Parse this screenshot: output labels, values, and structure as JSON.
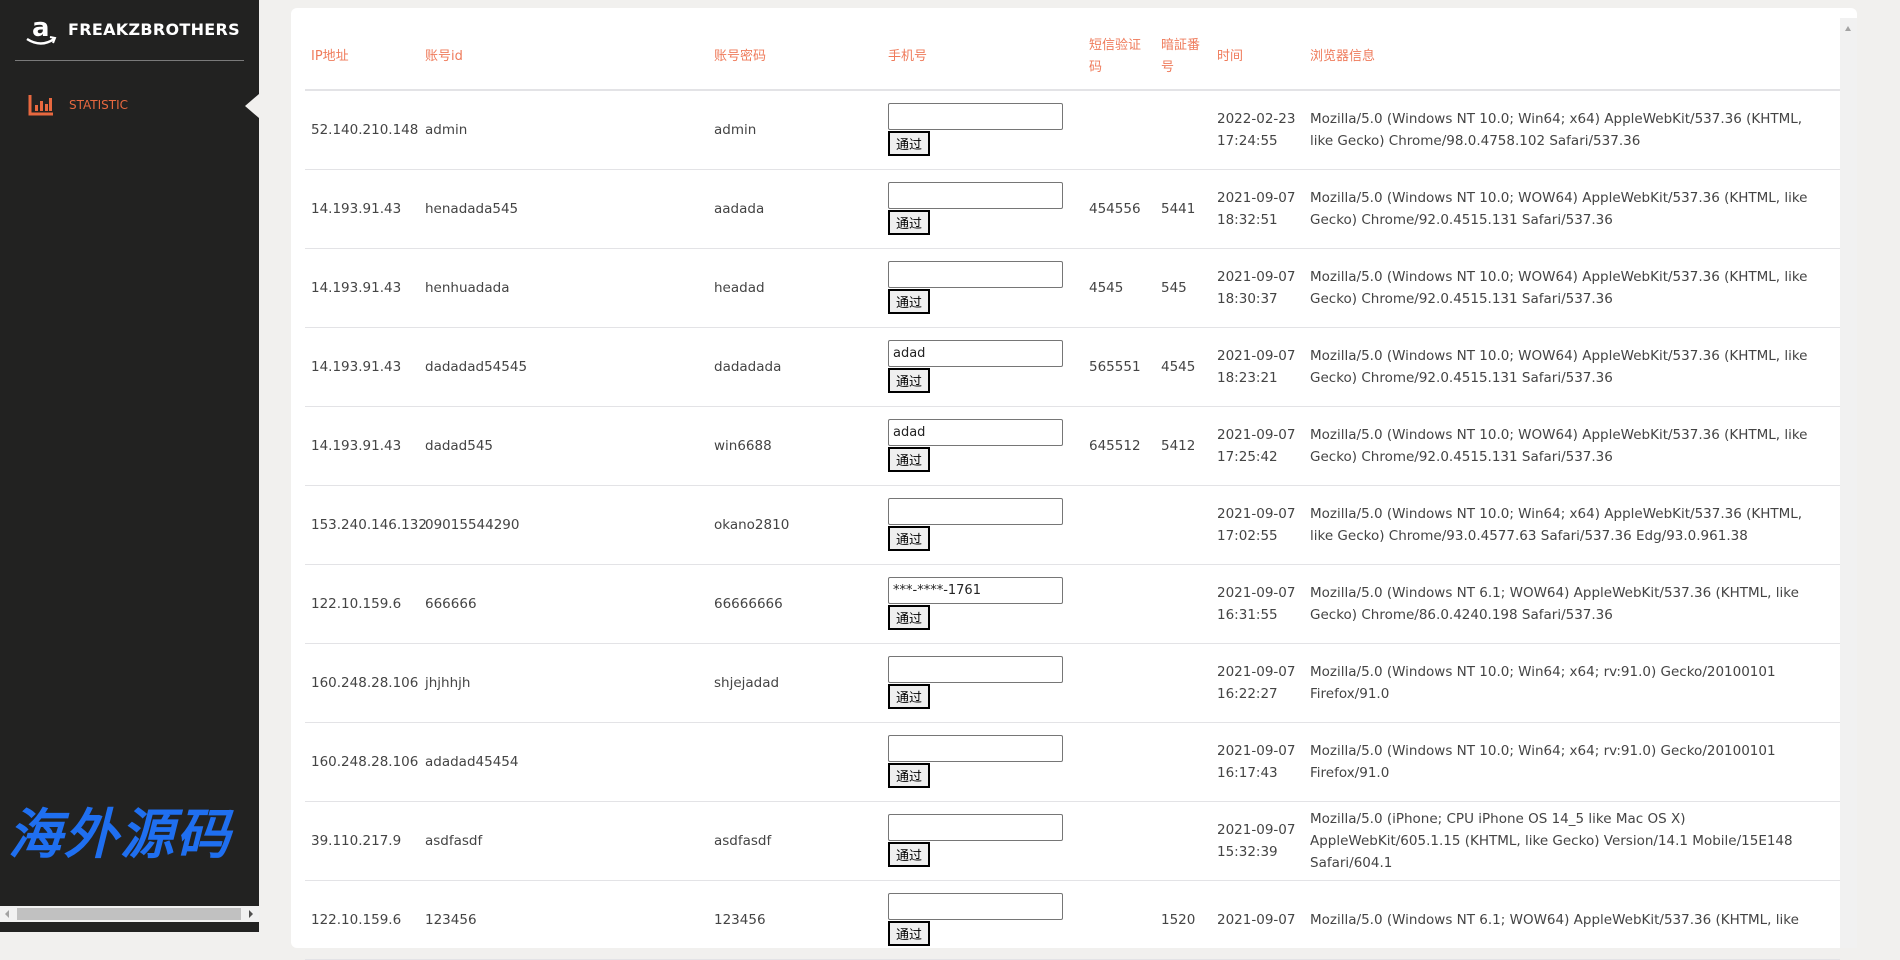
{
  "sidebar": {
    "brand": "FREAKZBROTHERS",
    "logo_icon": "amazon-logo",
    "nav": [
      {
        "label": "STATISTIC",
        "icon": "bar-chart-icon",
        "active": true
      }
    ],
    "accent": "#e8683f"
  },
  "table": {
    "headers": [
      "IP地址",
      "账号id",
      "账号密码",
      "手机号",
      "短信验证码",
      "暗証番号",
      "时间",
      "浏览器信息"
    ],
    "button_label": "通过",
    "rows": [
      {
        "ip": "52.140.210.148",
        "id": "admin",
        "pwd": "admin",
        "phone": "",
        "sms": "",
        "pin": "",
        "date": "2022-02-23",
        "time": "17:24:55",
        "ua": "Mozilla/5.0 (Windows NT 10.0; Win64; x64) AppleWebKit/537.36 (KHTML, like Gecko) Chrome/98.0.4758.102 Safari/537.36"
      },
      {
        "ip": "14.193.91.43",
        "id": "henadada545",
        "pwd": "aadada",
        "phone": "",
        "sms": "454556",
        "pin": "5441",
        "date": "2021-09-07",
        "time": "18:32:51",
        "ua": "Mozilla/5.0 (Windows NT 10.0; WOW64) AppleWebKit/537.36 (KHTML, like Gecko) Chrome/92.0.4515.131 Safari/537.36"
      },
      {
        "ip": "14.193.91.43",
        "id": "henhuadada",
        "pwd": "headad",
        "phone": "",
        "sms": "4545",
        "pin": "545",
        "date": "2021-09-07",
        "time": "18:30:37",
        "ua": "Mozilla/5.0 (Windows NT 10.0; WOW64) AppleWebKit/537.36 (KHTML, like Gecko) Chrome/92.0.4515.131 Safari/537.36"
      },
      {
        "ip": "14.193.91.43",
        "id": "dadadad54545",
        "pwd": "dadadada",
        "phone": "adad",
        "sms": "565551",
        "pin": "4545",
        "date": "2021-09-07",
        "time": "18:23:21",
        "ua": "Mozilla/5.0 (Windows NT 10.0; WOW64) AppleWebKit/537.36 (KHTML, like Gecko) Chrome/92.0.4515.131 Safari/537.36"
      },
      {
        "ip": "14.193.91.43",
        "id": "dadad545",
        "pwd": "win6688",
        "phone": "adad",
        "sms": "645512",
        "pin": "5412",
        "date": "2021-09-07",
        "time": "17:25:42",
        "ua": "Mozilla/5.0 (Windows NT 10.0; WOW64) AppleWebKit/537.36 (KHTML, like Gecko) Chrome/92.0.4515.131 Safari/537.36"
      },
      {
        "ip": "153.240.146.132",
        "id": "09015544290",
        "pwd": "okano2810",
        "phone": "",
        "sms": "",
        "pin": "",
        "date": "2021-09-07",
        "time": "17:02:55",
        "ua": "Mozilla/5.0 (Windows NT 10.0; Win64; x64) AppleWebKit/537.36 (KHTML, like Gecko) Chrome/93.0.4577.63 Safari/537.36 Edg/93.0.961.38"
      },
      {
        "ip": "122.10.159.6",
        "id": "666666",
        "pwd": "66666666",
        "phone": "***-****-1761",
        "sms": "",
        "pin": "",
        "date": "2021-09-07",
        "time": "16:31:55",
        "ua": "Mozilla/5.0 (Windows NT 6.1; WOW64) AppleWebKit/537.36 (KHTML, like Gecko) Chrome/86.0.4240.198 Safari/537.36"
      },
      {
        "ip": "160.248.28.106",
        "id": "jhjhhjh",
        "pwd": "shjejadad",
        "phone": "",
        "sms": "",
        "pin": "",
        "date": "2021-09-07",
        "time": "16:22:27",
        "ua": "Mozilla/5.0 (Windows NT 10.0; Win64; x64; rv:91.0) Gecko/20100101 Firefox/91.0"
      },
      {
        "ip": "160.248.28.106",
        "id": "adadad45454",
        "pwd": "",
        "phone": "",
        "sms": "",
        "pin": "",
        "date": "2021-09-07",
        "time": "16:17:43",
        "ua": "Mozilla/5.0 (Windows NT 10.0; Win64; x64; rv:91.0) Gecko/20100101 Firefox/91.0"
      },
      {
        "ip": "39.110.217.9",
        "id": "asdfasdf",
        "pwd": "asdfasdf",
        "phone": "",
        "sms": "",
        "pin": "",
        "date": "2021-09-07",
        "time": "15:32:39",
        "ua": "Mozilla/5.0 (iPhone; CPU iPhone OS 14_5 like Mac OS X) AppleWebKit/605.1.15 (KHTML, like Gecko) Version/14.1 Mobile/15E148 Safari/604.1"
      },
      {
        "ip": "122.10.159.6",
        "id": "123456",
        "pwd": "123456",
        "phone": "",
        "sms": "",
        "pin": "1520",
        "date": "2021-09-07",
        "time": "",
        "ua": "Mozilla/5.0 (Windows NT 6.1; WOW64) AppleWebKit/537.36 (KHTML, like"
      }
    ]
  },
  "watermark": "海外源码"
}
